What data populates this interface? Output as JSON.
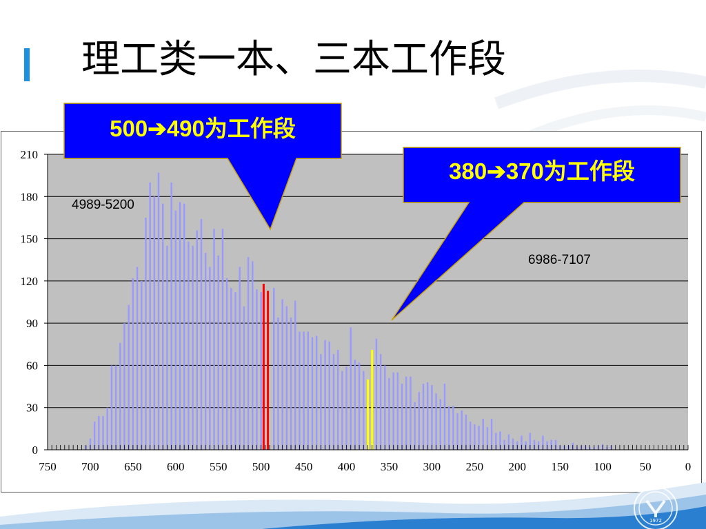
{
  "slide": {
    "title": "理工类一本、三本工作段",
    "accent_color": "#1e90e0"
  },
  "callouts": [
    {
      "text": "500➔490为工作段",
      "fill": "#0000ff",
      "text_color": "#ffff00"
    },
    {
      "text": "380➔370为工作段",
      "fill": "#0000ff",
      "text_color": "#ffff00"
    }
  ],
  "annotations": [
    "4989-5200",
    "6986-7107"
  ],
  "emblem": {
    "year": "1972"
  },
  "chart_data": {
    "type": "bar",
    "x_reversed": true,
    "xlim": [
      0,
      750
    ],
    "ylim": [
      0,
      210
    ],
    "x_ticks": [
      750,
      700,
      650,
      600,
      550,
      500,
      450,
      400,
      350,
      300,
      250,
      200,
      150,
      100,
      50,
      0
    ],
    "y_ticks": [
      0,
      30,
      60,
      90,
      120,
      150,
      180,
      210
    ],
    "grid": true,
    "plot_background": "#c0c0c0",
    "bar_color": "#9999ff",
    "title": "",
    "xlabel": "",
    "ylabel": "",
    "series": [
      {
        "x": [
          705,
          700,
          695,
          690,
          685,
          680,
          675,
          670,
          665,
          660,
          655,
          650,
          645,
          640,
          635,
          630,
          625,
          620,
          615,
          610,
          605,
          600,
          595,
          590,
          585,
          580,
          575,
          570,
          565,
          560,
          555,
          550,
          545,
          540,
          535,
          530,
          525,
          520,
          515,
          510,
          505,
          500,
          485,
          480,
          475,
          470,
          465,
          460,
          455,
          450,
          445,
          440,
          435,
          430,
          425,
          420,
          415,
          410,
          405,
          400,
          395,
          390,
          385,
          380,
          365,
          360,
          355,
          350,
          345,
          340,
          335,
          330,
          325,
          320,
          315,
          310,
          305,
          300,
          295,
          290,
          285,
          280,
          275,
          270,
          265,
          260,
          255,
          250,
          245,
          240,
          235,
          230,
          225,
          220,
          215,
          210,
          205,
          200,
          195,
          190,
          185,
          180,
          175,
          170,
          165,
          160,
          155,
          150,
          145,
          140,
          135,
          130,
          125,
          120,
          115,
          110,
          105,
          100,
          95,
          90
        ],
        "values": [
          3,
          8,
          20,
          24,
          24,
          30,
          60,
          60,
          76,
          90,
          103,
          122,
          130,
          120,
          165,
          190,
          180,
          197,
          175,
          145,
          190,
          170,
          176,
          175,
          148,
          145,
          156,
          164,
          140,
          130,
          157,
          138,
          157,
          122,
          115,
          112,
          130,
          102,
          137,
          134,
          114,
          112,
          115,
          94,
          107,
          102,
          94,
          106,
          84,
          84,
          84,
          80,
          81,
          68,
          78,
          77,
          68,
          71,
          56,
          59,
          87,
          64,
          62,
          56,
          79,
          68,
          60,
          51,
          55,
          55,
          47,
          52,
          52,
          34,
          41,
          47,
          48,
          46,
          40,
          36,
          47,
          31,
          31,
          26,
          28,
          25,
          20,
          18,
          17,
          22,
          16,
          22,
          12,
          13,
          7,
          11,
          8,
          6,
          10,
          6,
          12,
          7,
          6,
          10,
          6,
          7,
          7,
          3,
          3,
          3,
          5,
          2,
          3,
          3,
          2,
          2,
          3,
          4,
          2,
          3
        ]
      },
      {
        "name": "",
        "x": [
          497
        ],
        "values": [
          118
        ],
        "color": "#ff0000"
      },
      {
        "name": "",
        "x": [
          492
        ],
        "values": [
          113
        ],
        "color": "#ff0000"
      },
      {
        "name": "",
        "x": [
          375
        ],
        "values": [
          50
        ],
        "color": "#ffff00"
      },
      {
        "name": "",
        "x": [
          370
        ],
        "values": [
          71
        ],
        "color": "#ffff00"
      }
    ]
  }
}
